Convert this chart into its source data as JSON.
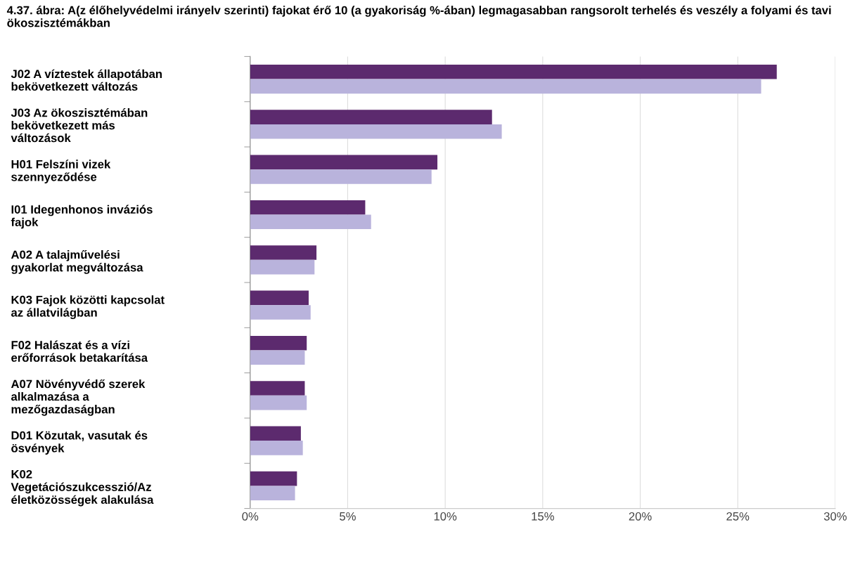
{
  "chart_data": {
    "type": "bar",
    "orientation": "horizontal",
    "title": "4.37. ábra: A(z élőhelyvédelmi irányelv szerinti) fajokat érő 10 (a gyakoriság %-ában) legmagasabban rangsorolt terhelés és veszély a folyami és tavi ökoszisztémákban",
    "categories": [
      "J02 A víztestek állapotában\nbekövetkezett változás",
      "J03 Az ökoszisztémában\nbekövetkezett más\nváltozások",
      "H01 Felszíni vizek\nszennyeződése",
      "I01 Idegenhonos inváziós\nfajok",
      "A02 A talajművelési\ngyakorlat megváltozása",
      "K03 Fajok közötti kapcsolat\naz állatvilágban",
      "F02 Halászat és a vízi\nerőforrások betakarítása",
      "A07 Növényvédő szerek\nalkalmazása a\nmezőgazdaságban",
      "D01 Közutak, vasutak és\nösvények",
      "K02\nVegetációszukcesszió/Az\néletközösségek alakulása"
    ],
    "series": [
      {
        "color": "#5c2a6e",
        "values": [
          27.0,
          12.4,
          9.6,
          5.9,
          3.4,
          3.0,
          2.9,
          2.8,
          2.6,
          2.4
        ]
      },
      {
        "color": "#b9b3dc",
        "values": [
          26.2,
          12.9,
          9.3,
          6.2,
          3.3,
          3.1,
          2.8,
          2.9,
          2.7,
          2.3
        ]
      }
    ],
    "xlim": [
      0,
      30
    ],
    "xticks": [
      {
        "value": 0,
        "label": "0%"
      },
      {
        "value": 5,
        "label": "5%"
      },
      {
        "value": 10,
        "label": "10%"
      },
      {
        "value": 15,
        "label": "15%"
      },
      {
        "value": 20,
        "label": "20%"
      },
      {
        "value": 25,
        "label": "25%"
      },
      {
        "value": 30,
        "label": "30%"
      }
    ],
    "grid": "x",
    "legend": false
  }
}
